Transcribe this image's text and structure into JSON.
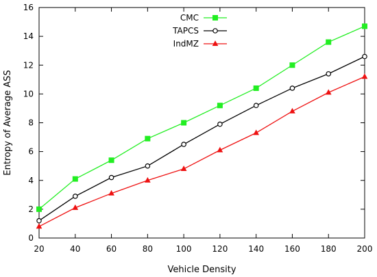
{
  "chart_data": {
    "type": "line",
    "title": "",
    "xlabel": "Vehicle Density",
    "ylabel": "Entropy of Average ASS",
    "x": [
      20,
      40,
      60,
      80,
      100,
      120,
      140,
      160,
      180,
      200
    ],
    "xlim": [
      20,
      200
    ],
    "ylim": [
      0,
      16
    ],
    "x_ticks": [
      20,
      40,
      60,
      80,
      100,
      120,
      140,
      160,
      180,
      200
    ],
    "y_ticks": [
      0,
      2,
      4,
      6,
      8,
      10,
      12,
      14,
      16
    ],
    "grid": false,
    "legend_position": "top-center",
    "series": [
      {
        "name": "CMC",
        "color": "#22ee22",
        "marker": "filled-square",
        "values": [
          2.0,
          4.1,
          5.4,
          6.9,
          8.0,
          9.2,
          10.4,
          12.0,
          13.6,
          14.7
        ]
      },
      {
        "name": "TAPCS",
        "color": "#000000",
        "marker": "open-circle",
        "values": [
          1.2,
          2.9,
          4.2,
          5.0,
          6.5,
          7.9,
          9.2,
          10.4,
          11.4,
          12.6
        ]
      },
      {
        "name": "IndMZ",
        "color": "#ee1111",
        "marker": "filled-triangle",
        "values": [
          0.8,
          2.1,
          3.1,
          4.0,
          4.8,
          6.1,
          7.3,
          8.8,
          10.1,
          11.2
        ]
      }
    ]
  }
}
